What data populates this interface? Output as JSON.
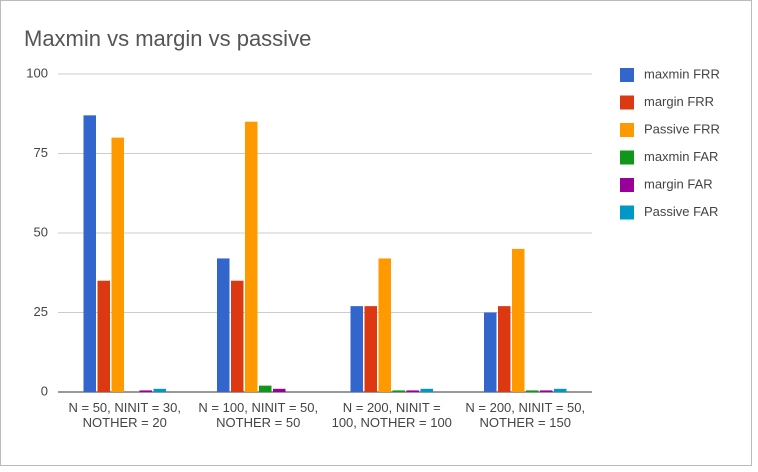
{
  "chart_data": {
    "type": "bar",
    "title": "Maxmin vs margin vs passive",
    "categories": [
      "N = 50, NINIT = 30, NOTHER = 20",
      "N = 100, NINIT = 50, NOTHER = 50",
      "N = 200, NINIT = 100, NOTHER = 100",
      "N = 200, NINIT = 50, NOTHER = 150"
    ],
    "series": [
      {
        "name": "maxmin FRR",
        "color": "#3366cc",
        "values": [
          87,
          42,
          27,
          25
        ]
      },
      {
        "name": "margin FRR",
        "color": "#dc3912",
        "values": [
          35,
          35,
          27,
          27
        ]
      },
      {
        "name": "Passive FRR",
        "color": "#ff9900",
        "values": [
          80,
          85,
          42,
          45
        ]
      },
      {
        "name": "maxmin FAR",
        "color": "#109618",
        "values": [
          0,
          2,
          0.5,
          0.5
        ]
      },
      {
        "name": "margin FAR",
        "color": "#990099",
        "values": [
          0.5,
          1,
          0.5,
          0.5
        ]
      },
      {
        "name": "Passive FAR",
        "color": "#0099c6",
        "values": [
          1,
          0,
          1,
          1
        ]
      }
    ],
    "ylim": [
      0,
      100
    ],
    "yticks": [
      0,
      25,
      50,
      75,
      100
    ],
    "grid": true,
    "legend": "right"
  }
}
